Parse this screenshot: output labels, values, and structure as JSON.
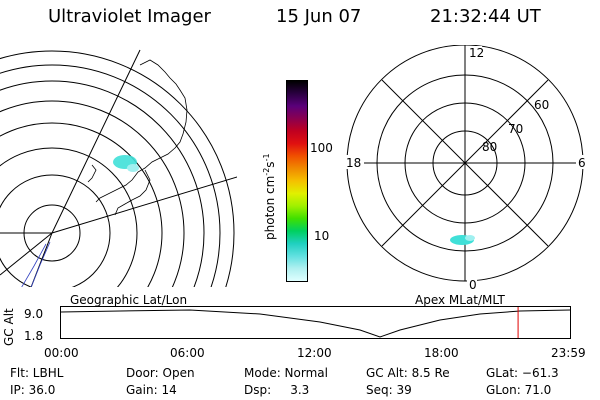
{
  "header": {
    "title": "Ultraviolet Imager",
    "date": "15 Jun 07",
    "time": "21:32:44 UT"
  },
  "left_panel": {
    "caption": "Geographic Lat/Lon"
  },
  "right_panel": {
    "caption": "Apex MLat/MLT",
    "mlt_labels": [
      "12",
      "18",
      "6",
      "0"
    ],
    "lat_labels": [
      "60",
      "70",
      "80"
    ]
  },
  "colorbar": {
    "unit_label": "photon cm",
    "unit_exp1": "-2",
    "unit_s": "s",
    "unit_exp2": "-1",
    "scale": "log",
    "ticks": [
      "100",
      "10"
    ],
    "colors": [
      "#000000",
      "#2a0040",
      "#5a007a",
      "#8a0050",
      "#c00020",
      "#e01010",
      "#f05000",
      "#f08a00",
      "#f5c000",
      "#e0f000",
      "#a0f000",
      "#40e000",
      "#00d060",
      "#20d0c0",
      "#60e0e0",
      "#b0f0f0",
      "#e0ffff"
    ]
  },
  "timeline": {
    "axis_label": "GC Alt",
    "y_ticks": [
      "9.0",
      "1.8"
    ],
    "x_ticks": [
      "00:00",
      "06:00",
      "12:00",
      "18:00",
      "23:59"
    ],
    "current_time_fraction": 0.898,
    "marker_color": "#e00000"
  },
  "info": {
    "flt": "Flt: LBHL",
    "door": "Door: Open",
    "mode": "Mode: Normal",
    "gc_alt": "GC Alt: 8.5 Re",
    "glat": "GLat: −61.3",
    "ip": "IP: 36.0",
    "gain": "Gain: 14",
    "dsp": "Dsp:     3.3",
    "seq": "Seq: 39",
    "glon": "GLon: 71.0"
  }
}
